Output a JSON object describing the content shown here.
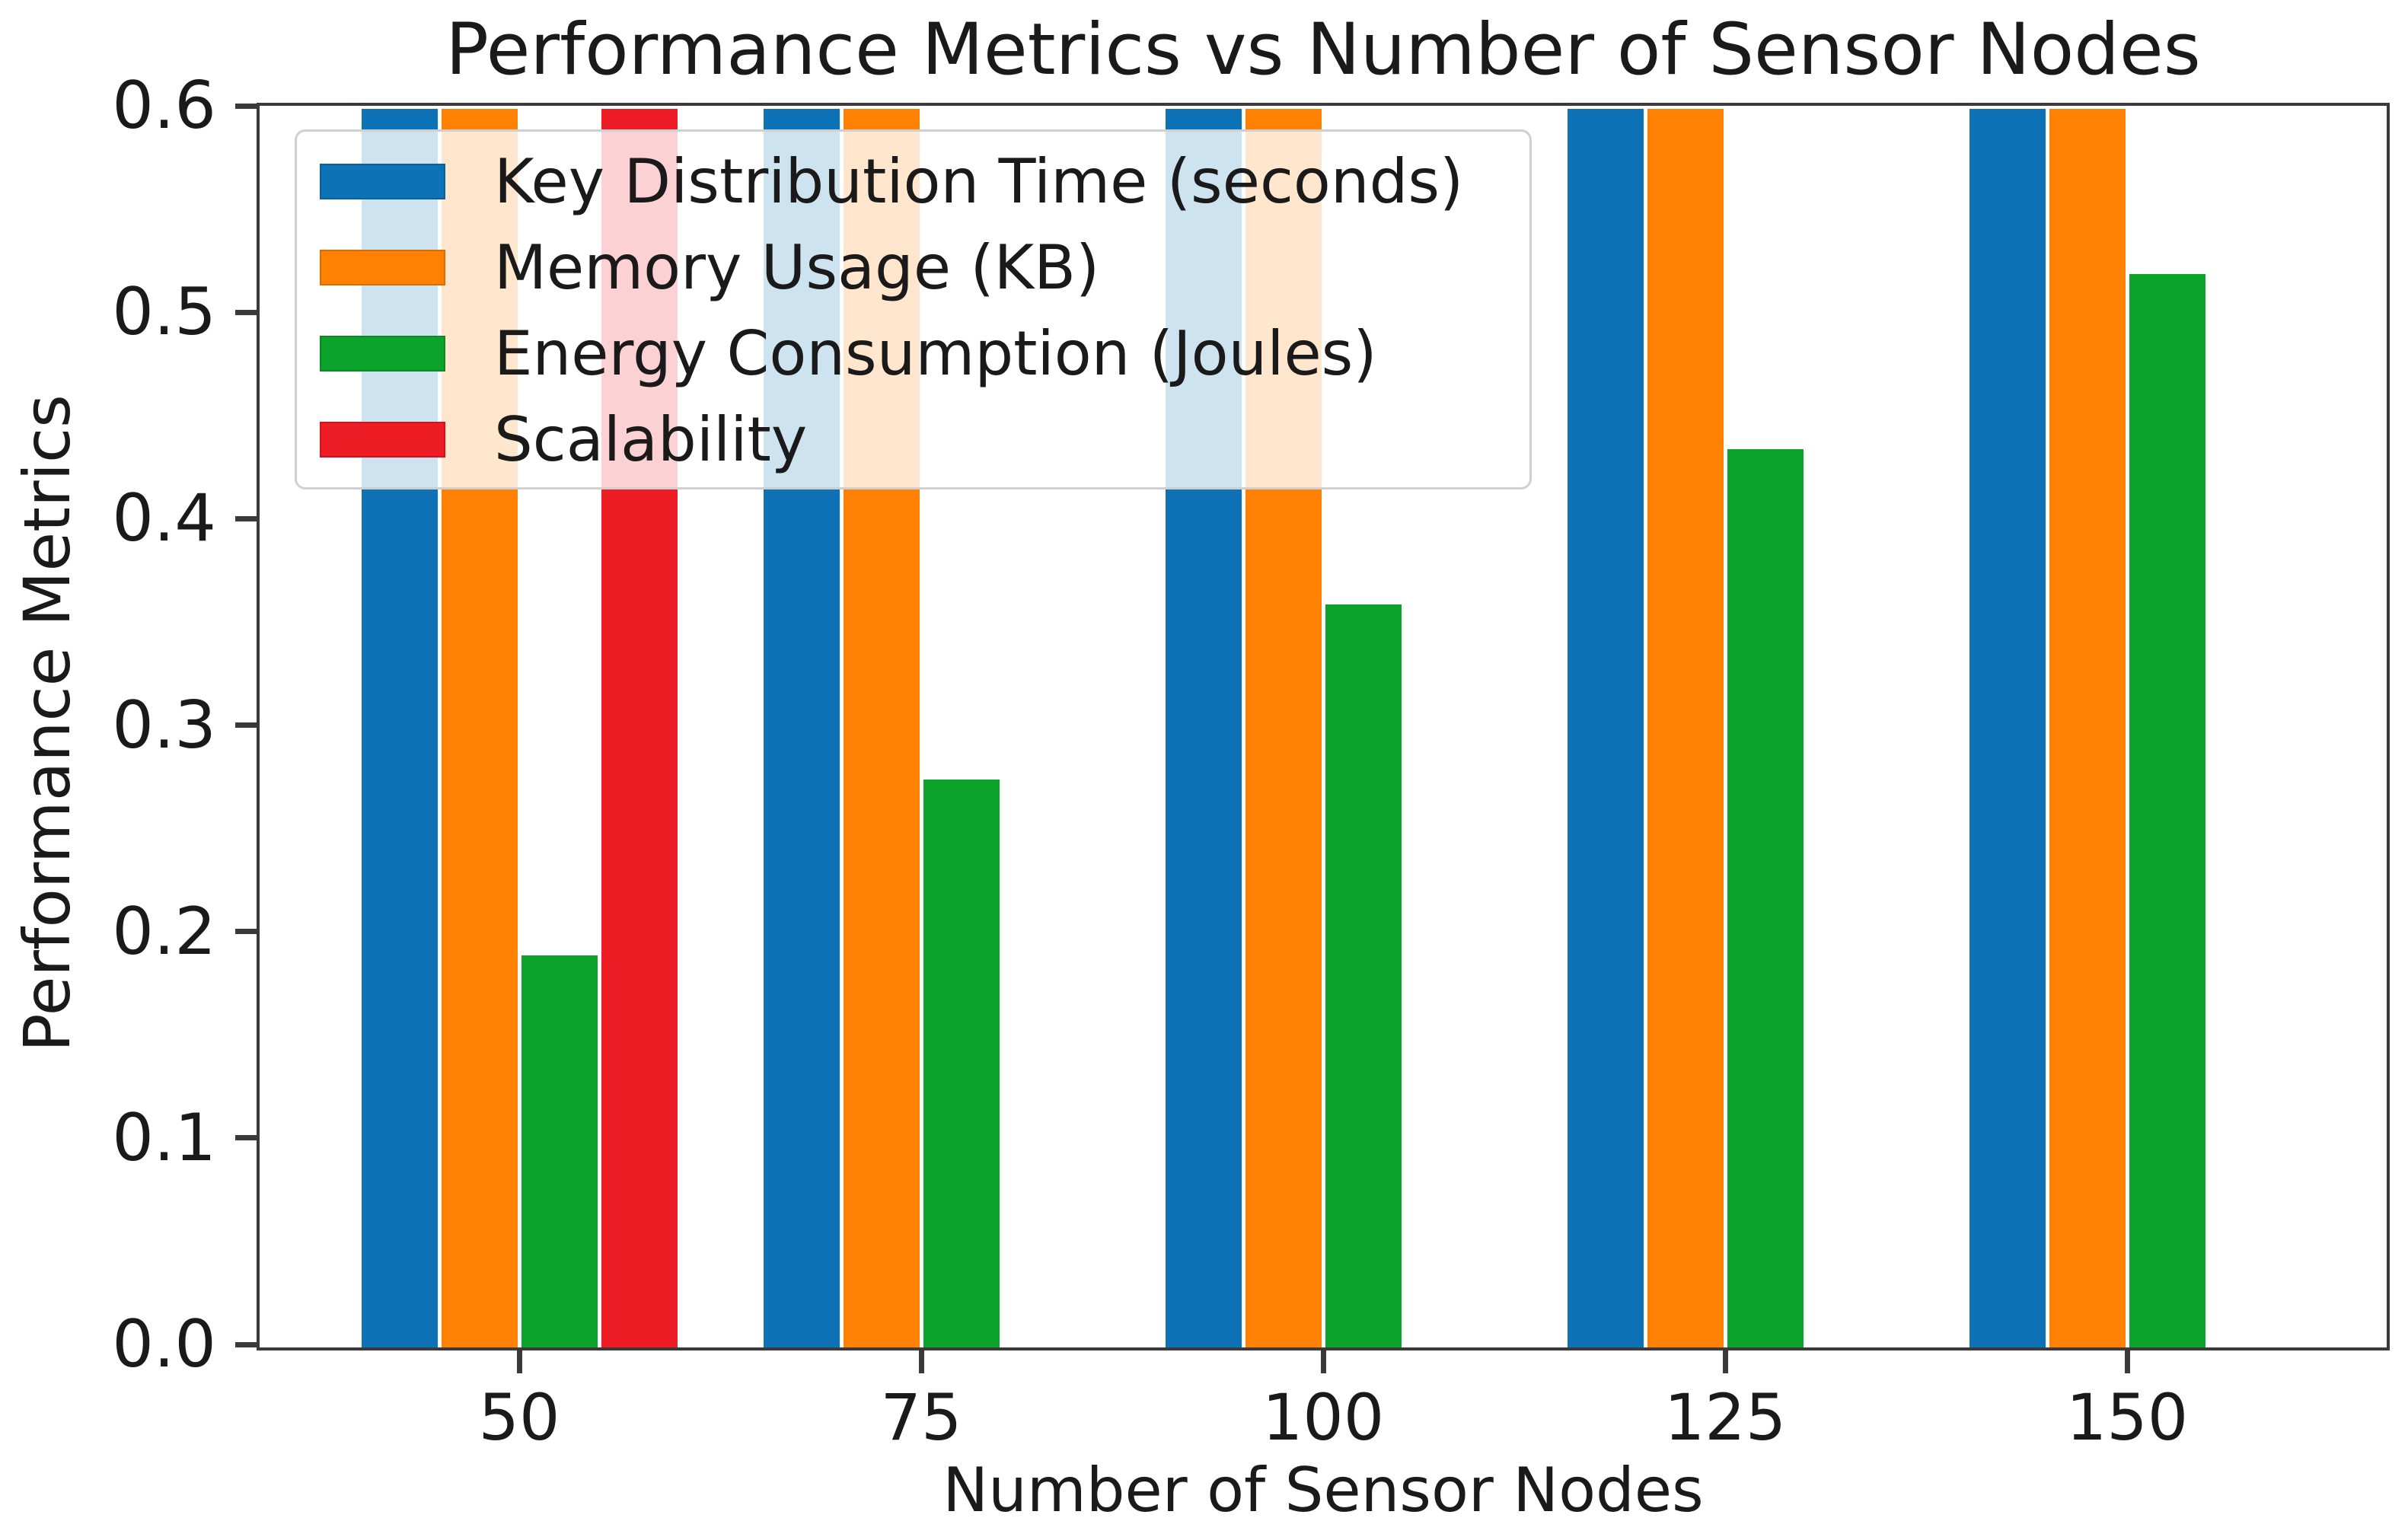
{
  "chart_data": {
    "type": "bar",
    "title": "Performance Metrics vs Number of Sensor Nodes",
    "xlabel": "Number of Sensor Nodes",
    "ylabel": "Performance Metrics",
    "categories": [
      "50",
      "75",
      "100",
      "125",
      "150"
    ],
    "y_ticks": [
      "0.0",
      "0.1",
      "0.2",
      "0.3",
      "0.4",
      "0.5",
      "0.6"
    ],
    "ylim": [
      0,
      0.6
    ],
    "grid": false,
    "legend_position": "upper left",
    "series": [
      {
        "name": "Key Distribution Time (seconds)",
        "color": "#0d73b6",
        "values": [
          0.6,
          0.6,
          0.6,
          0.6,
          0.6
        ],
        "clipped_above_axis": [
          true,
          true,
          true,
          true,
          true
        ]
      },
      {
        "name": "Memory Usage (KB)",
        "color": "#ff8104",
        "values": [
          0.6,
          0.6,
          0.6,
          0.6,
          0.6
        ],
        "clipped_above_axis": [
          true,
          true,
          true,
          true,
          true
        ]
      },
      {
        "name": "Energy Consumption (Joules)",
        "color": "#0ca32c",
        "values": [
          0.19,
          0.275,
          0.36,
          0.435,
          0.52
        ],
        "clipped_above_axis": [
          false,
          false,
          false,
          false,
          false
        ]
      },
      {
        "name": "Scalability",
        "color": "#ee1c25",
        "values": [
          0.6,
          0,
          0,
          0,
          0
        ],
        "clipped_above_axis": [
          true,
          false,
          false,
          false,
          false
        ]
      }
    ],
    "note": "Blue and orange bars in every group, and the red bar at x=50, extend beyond the y-axis maximum and are clipped at 0.6. Red bars are absent (zero) for groups 75-150."
  },
  "colors": {
    "spine": "#3a3a3a",
    "text": "#1a1a1a",
    "legend_border": "#d0d0d0",
    "legend_background": "rgba(255,255,255,0.8)",
    "plot_background": "#ffffff"
  }
}
